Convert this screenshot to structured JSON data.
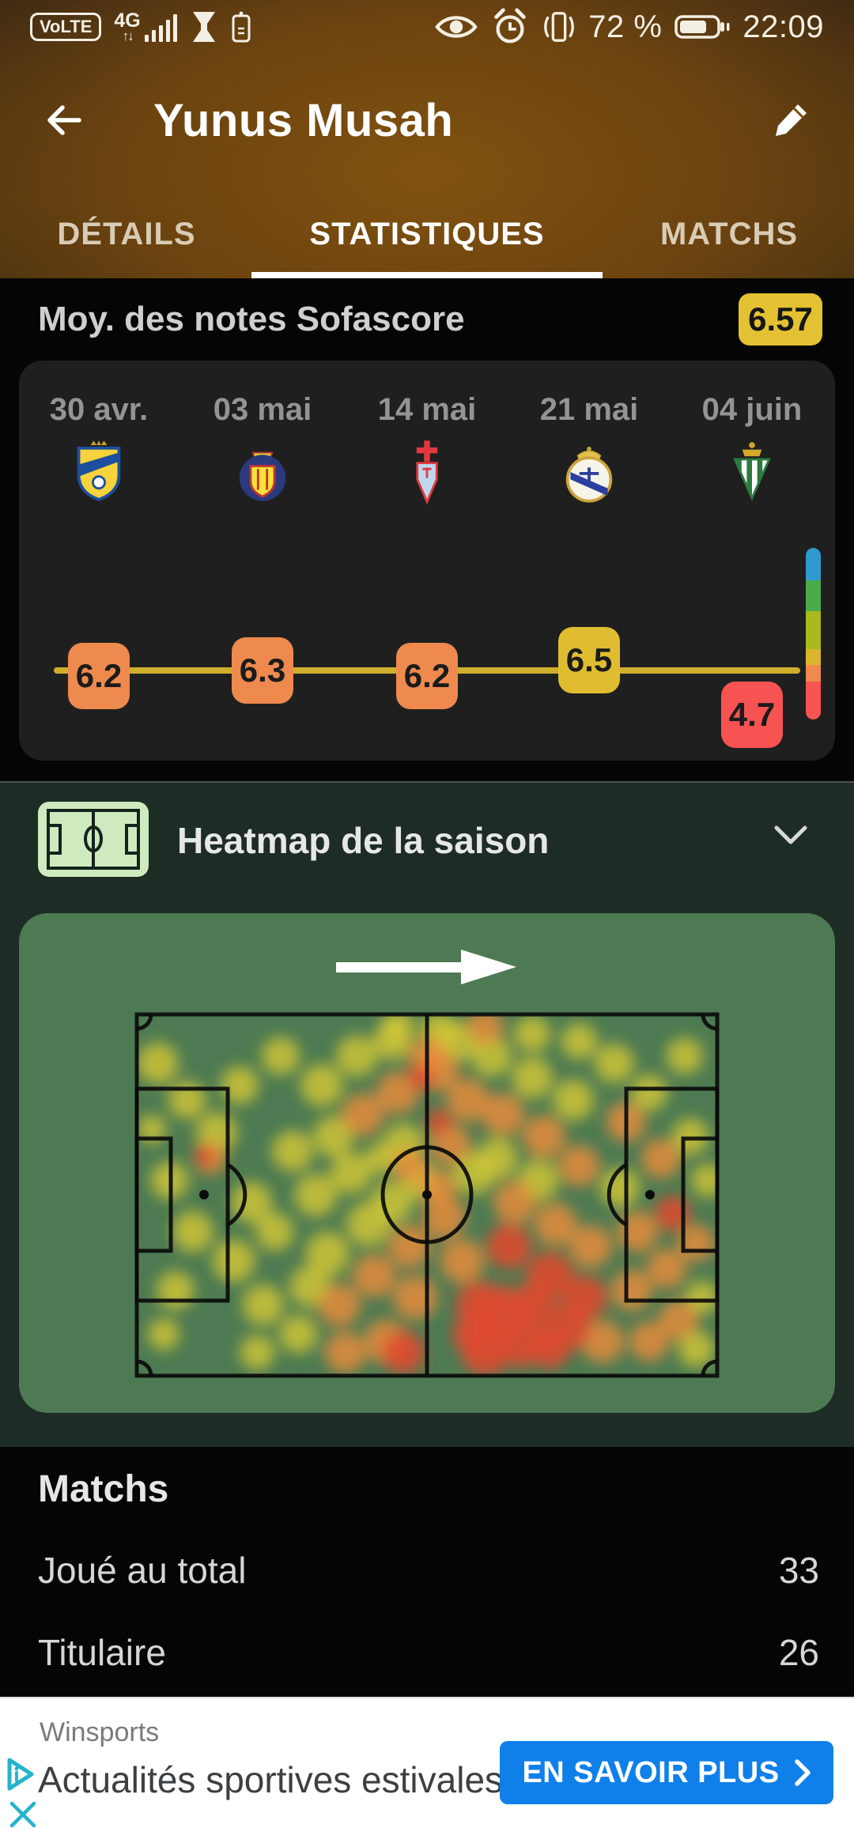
{
  "status_bar": {
    "volte": "VoLTE",
    "network": "4G",
    "battery": "72 %",
    "time": "22:09"
  },
  "header": {
    "title": "Yunus Musah"
  },
  "tabs": [
    {
      "label": "DÉTAILS",
      "active": false
    },
    {
      "label": "STATISTIQUES",
      "active": true
    },
    {
      "label": "MATCHS",
      "active": false
    }
  ],
  "rating_summary": {
    "label": "Moy. des notes Sofascore",
    "value": "6.57",
    "badge_color": "#e3c133"
  },
  "chart_data": {
    "type": "line",
    "title": "Moy. des notes Sofascore",
    "categories": [
      "30 avr.",
      "03 mai",
      "14 mai",
      "21 mai",
      "04 juin"
    ],
    "teams": [
      "Cádiz CF",
      "Villarreal CF",
      "Celta de Vigo",
      "Real Madrid",
      "Real Betis"
    ],
    "values": [
      6.2,
      6.3,
      6.2,
      6.5,
      4.7
    ],
    "average": "6.57",
    "ylim": [
      0,
      10
    ],
    "point_colors": [
      "#ee8a4e",
      "#ee8a4e",
      "#ee8a4e",
      "#e0bd30",
      "#f75352"
    ],
    "line_color": "#cfae2c",
    "scale": [
      {
        "color": "#2e9bd0",
        "pct": 19
      },
      {
        "color": "#4cab48",
        "pct": 18
      },
      {
        "color": "#a8ba1c",
        "pct": 22
      },
      {
        "color": "#dcb52f",
        "pct": 9
      },
      {
        "color": "#ee8a4e",
        "pct": 10
      },
      {
        "color": "#f75352",
        "pct": 22
      }
    ]
  },
  "heatmap": {
    "section_title": "Heatmap de la saison",
    "pitch_color": "#4d7a52",
    "blob_colors": [
      "#d9ca33",
      "#ec8c3a",
      "#e14a2e"
    ],
    "blobs": [
      [
        4,
        14,
        26,
        0
      ],
      [
        9,
        24,
        24,
        0
      ],
      [
        6,
        46,
        24,
        0
      ],
      [
        10,
        60,
        26,
        0
      ],
      [
        7,
        76,
        24,
        0
      ],
      [
        14,
        33,
        26,
        0
      ],
      [
        13,
        40,
        20,
        1
      ],
      [
        12,
        39,
        13,
        2
      ],
      [
        18,
        20,
        24,
        0
      ],
      [
        20,
        52,
        26,
        0
      ],
      [
        17,
        68,
        27,
        0
      ],
      [
        22,
        80,
        26,
        0
      ],
      [
        25,
        12,
        24,
        0
      ],
      [
        27,
        38,
        26,
        0
      ],
      [
        24,
        60,
        24,
        0
      ],
      [
        28,
        88,
        24,
        0
      ],
      [
        21,
        93,
        22,
        0
      ],
      [
        3,
        32,
        18,
        0
      ],
      [
        5,
        88,
        20,
        0
      ],
      [
        32,
        20,
        27,
        0
      ],
      [
        34,
        34,
        26,
        0
      ],
      [
        31,
        50,
        27,
        0
      ],
      [
        33,
        66,
        28,
        0
      ],
      [
        35,
        80,
        27,
        1
      ],
      [
        38,
        12,
        26,
        0
      ],
      [
        39,
        28,
        27,
        1
      ],
      [
        37,
        44,
        26,
        0
      ],
      [
        40,
        58,
        28,
        0
      ],
      [
        41,
        72,
        27,
        1
      ],
      [
        43,
        90,
        28,
        1
      ],
      [
        44,
        8,
        24,
        0
      ],
      [
        45,
        22,
        27,
        1
      ],
      [
        46,
        36,
        26,
        0
      ],
      [
        44,
        52,
        27,
        0
      ],
      [
        47,
        64,
        27,
        1
      ],
      [
        48,
        78,
        28,
        1
      ],
      [
        46,
        93,
        27,
        2
      ],
      [
        36,
        93,
        26,
        1
      ],
      [
        30,
        75,
        26,
        0
      ],
      [
        49,
        46,
        24,
        0
      ],
      [
        42,
        40,
        20,
        0
      ],
      [
        49,
        18,
        16,
        2
      ],
      [
        52,
        30,
        16,
        2
      ],
      [
        47,
        42,
        22,
        1
      ],
      [
        52,
        48,
        22,
        1
      ],
      [
        50,
        12,
        24,
        1
      ],
      [
        52,
        16,
        26,
        1
      ],
      [
        55,
        8,
        26,
        0
      ],
      [
        57,
        24,
        27,
        1
      ],
      [
        54,
        36,
        26,
        1
      ],
      [
        58,
        44,
        27,
        0
      ],
      [
        53,
        56,
        27,
        1
      ],
      [
        56,
        68,
        28,
        1
      ],
      [
        59,
        80,
        30,
        2
      ],
      [
        61,
        12,
        26,
        0
      ],
      [
        63,
        28,
        27,
        1
      ],
      [
        62,
        40,
        26,
        0
      ],
      [
        65,
        52,
        27,
        1
      ],
      [
        64,
        64,
        28,
        2
      ],
      [
        66,
        90,
        32,
        2
      ],
      [
        60,
        93,
        30,
        2
      ],
      [
        68,
        18,
        26,
        0
      ],
      [
        70,
        34,
        27,
        1
      ],
      [
        69,
        46,
        26,
        0
      ],
      [
        72,
        58,
        27,
        1
      ],
      [
        71,
        72,
        30,
        2
      ],
      [
        74,
        86,
        30,
        2
      ],
      [
        75,
        24,
        26,
        0
      ],
      [
        76,
        42,
        26,
        1
      ],
      [
        78,
        64,
        27,
        1
      ],
      [
        77,
        78,
        28,
        2
      ],
      [
        80,
        90,
        27,
        1
      ],
      [
        63,
        82,
        34,
        2
      ],
      [
        68,
        80,
        27,
        2
      ],
      [
        58,
        88,
        27,
        2
      ],
      [
        71,
        92,
        25,
        2
      ],
      [
        82,
        14,
        25,
        0
      ],
      [
        84,
        30,
        25,
        1
      ],
      [
        83,
        48,
        25,
        0
      ],
      [
        86,
        60,
        26,
        1
      ],
      [
        85,
        76,
        26,
        1
      ],
      [
        88,
        22,
        23,
        0
      ],
      [
        90,
        40,
        25,
        1
      ],
      [
        92,
        55,
        22,
        2
      ],
      [
        91,
        70,
        25,
        1
      ],
      [
        94,
        12,
        23,
        0
      ],
      [
        95,
        34,
        23,
        0
      ],
      [
        96,
        63,
        23,
        1
      ],
      [
        93,
        84,
        25,
        1
      ],
      [
        97,
        78,
        21,
        0
      ],
      [
        98,
        46,
        21,
        0
      ],
      [
        88,
        90,
        25,
        1
      ],
      [
        96,
        92,
        23,
        0
      ],
      [
        52,
        5,
        23,
        0
      ],
      [
        60,
        4,
        23,
        1
      ],
      [
        45,
        4,
        21,
        0
      ],
      [
        68,
        6,
        23,
        0
      ],
      [
        76,
        8,
        23,
        0
      ]
    ]
  },
  "matches": {
    "title": "Matchs",
    "rows": [
      {
        "label": "Joué au total",
        "value": "33"
      },
      {
        "label": "Titulaire",
        "value": "26"
      }
    ]
  },
  "ad": {
    "advertiser": "Winsports",
    "headline": "Actualités sportives estivales",
    "cta": "EN SAVOIR PLUS",
    "cta_color": "#0f80ea"
  }
}
